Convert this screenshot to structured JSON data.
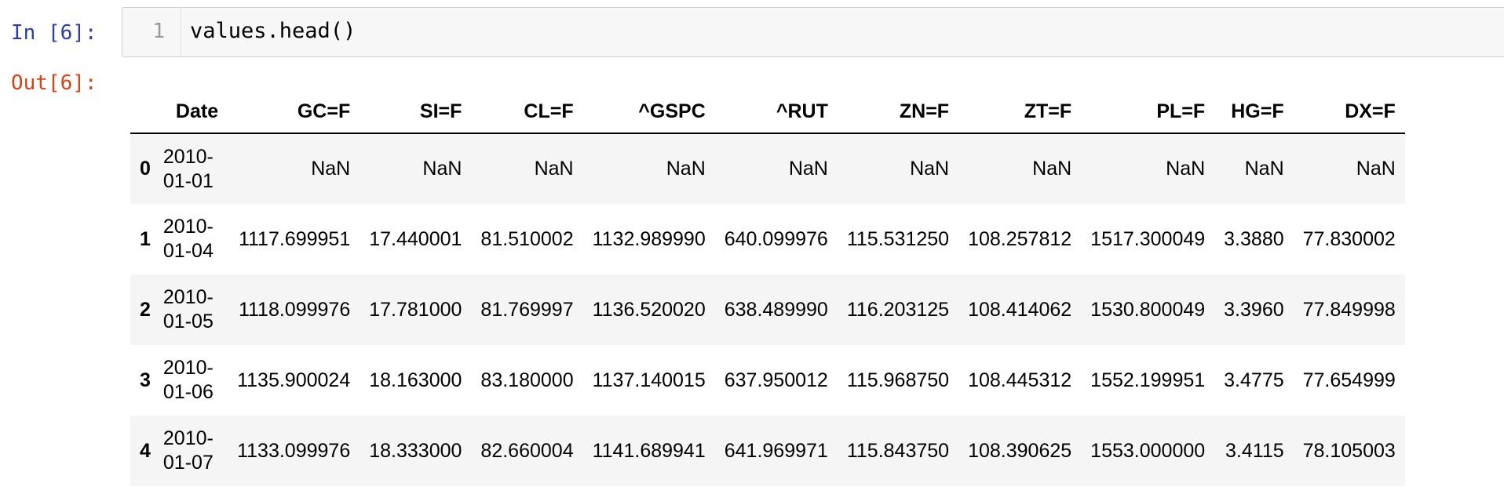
{
  "input": {
    "prompt": "In [6]:",
    "line_number": "1",
    "code": "values.head()"
  },
  "output": {
    "prompt": "Out[6]:",
    "columns": [
      "",
      "Date",
      "GC=F",
      "SI=F",
      "CL=F",
      "^GSPC",
      "^RUT",
      "ZN=F",
      "ZT=F",
      "PL=F",
      "HG=F",
      "DX=F"
    ],
    "rows": [
      {
        "index": "0",
        "date_line1": "2010-",
        "date_line2": "01-01",
        "values": [
          "NaN",
          "NaN",
          "NaN",
          "NaN",
          "NaN",
          "NaN",
          "NaN",
          "NaN",
          "NaN",
          "NaN"
        ]
      },
      {
        "index": "1",
        "date_line1": "2010-",
        "date_line2": "01-04",
        "values": [
          "1117.699951",
          "17.440001",
          "81.510002",
          "1132.989990",
          "640.099976",
          "115.531250",
          "108.257812",
          "1517.300049",
          "3.3880",
          "77.830002"
        ]
      },
      {
        "index": "2",
        "date_line1": "2010-",
        "date_line2": "01-05",
        "values": [
          "1118.099976",
          "17.781000",
          "81.769997",
          "1136.520020",
          "638.489990",
          "116.203125",
          "108.414062",
          "1530.800049",
          "3.3960",
          "77.849998"
        ]
      },
      {
        "index": "3",
        "date_line1": "2010-",
        "date_line2": "01-06",
        "values": [
          "1135.900024",
          "18.163000",
          "83.180000",
          "1137.140015",
          "637.950012",
          "115.968750",
          "108.445312",
          "1552.199951",
          "3.4775",
          "77.654999"
        ]
      },
      {
        "index": "4",
        "date_line1": "2010-",
        "date_line2": "01-07",
        "values": [
          "1133.099976",
          "18.333000",
          "82.660004",
          "1141.689941",
          "641.969971",
          "115.843750",
          "108.390625",
          "1553.000000",
          "3.4115",
          "78.105003"
        ]
      }
    ]
  }
}
